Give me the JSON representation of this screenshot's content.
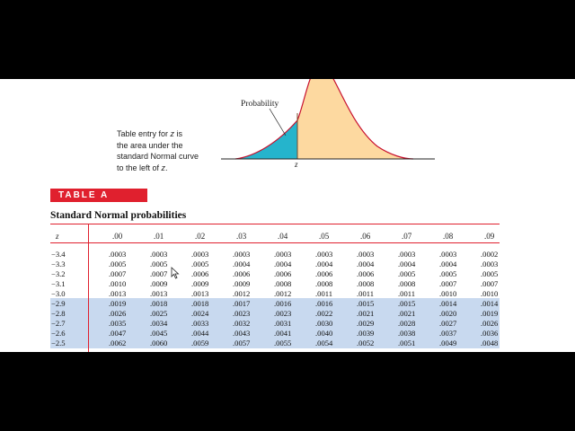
{
  "figure": {
    "probability_label": "Probability",
    "z_label": "z",
    "caption": {
      "line1_pre": "Table entry for ",
      "line1_var": "z",
      "line1_post": " is",
      "line2": "the area under the",
      "line3": "standard Normal curve",
      "line4_pre": "to the left of ",
      "line4_var": "z",
      "line4_post": "."
    },
    "colors": {
      "curve": "#c8102e",
      "shaded_left": "#25b4cc",
      "fill_body": "#fdd9a0",
      "band": "#c8d9ef",
      "accent": "#e0202e"
    }
  },
  "table": {
    "tag": "TABLE A",
    "title": "Standard Normal probabilities",
    "z_header": "z",
    "col_headers": [
      ".00",
      ".01",
      ".02",
      ".03",
      ".04",
      ".05",
      ".06",
      ".07",
      ".08",
      ".09"
    ],
    "rows": [
      {
        "z": "−3.4",
        "values": [
          ".0003",
          ".0003",
          ".0003",
          ".0003",
          ".0003",
          ".0003",
          ".0003",
          ".0003",
          ".0003",
          ".0002"
        ]
      },
      {
        "z": "−3.3",
        "values": [
          ".0005",
          ".0005",
          ".0005",
          ".0004",
          ".0004",
          ".0004",
          ".0004",
          ".0004",
          ".0004",
          ".0003"
        ]
      },
      {
        "z": "−3.2",
        "values": [
          ".0007",
          ".0007",
          ".0006",
          ".0006",
          ".0006",
          ".0006",
          ".0006",
          ".0005",
          ".0005",
          ".0005"
        ]
      },
      {
        "z": "−3.1",
        "values": [
          ".0010",
          ".0009",
          ".0009",
          ".0009",
          ".0008",
          ".0008",
          ".0008",
          ".0008",
          ".0007",
          ".0007"
        ]
      },
      {
        "z": "−3.0",
        "values": [
          ".0013",
          ".0013",
          ".0013",
          ".0012",
          ".0012",
          ".0011",
          ".0011",
          ".0011",
          ".0010",
          ".0010"
        ]
      },
      {
        "z": "−2.9",
        "values": [
          ".0019",
          ".0018",
          ".0018",
          ".0017",
          ".0016",
          ".0016",
          ".0015",
          ".0015",
          ".0014",
          ".0014"
        ]
      },
      {
        "z": "−2.8",
        "values": [
          ".0026",
          ".0025",
          ".0024",
          ".0023",
          ".0023",
          ".0022",
          ".0021",
          ".0021",
          ".0020",
          ".0019"
        ]
      },
      {
        "z": "−2.7",
        "values": [
          ".0035",
          ".0034",
          ".0033",
          ".0032",
          ".0031",
          ".0030",
          ".0029",
          ".0028",
          ".0027",
          ".0026"
        ]
      },
      {
        "z": "−2.6",
        "values": [
          ".0047",
          ".0045",
          ".0044",
          ".0043",
          ".0041",
          ".0040",
          ".0039",
          ".0038",
          ".0037",
          ".0036"
        ]
      },
      {
        "z": "−2.5",
        "values": [
          ".0062",
          ".0060",
          ".0059",
          ".0057",
          ".0055",
          ".0054",
          ".0052",
          ".0051",
          ".0049",
          ".0048"
        ]
      }
    ]
  },
  "cursor": {
    "icon": "mouse-pointer-icon"
  }
}
